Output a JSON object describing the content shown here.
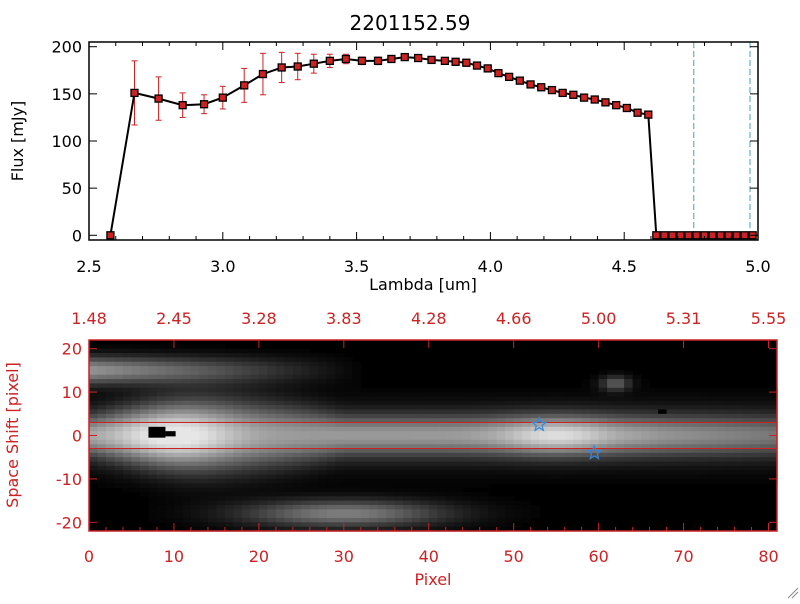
{
  "title": "2201152.59",
  "spectrum": {
    "xlabel": "Lambda [um]",
    "ylabel": "Flux [mJy]",
    "x_ticks": [
      "2.5",
      "3.0",
      "3.5",
      "4.0",
      "4.5",
      "5.0"
    ],
    "y_ticks": [
      "0",
      "50",
      "100",
      "150",
      "200"
    ],
    "reference_lines_x": [
      4.76,
      4.97
    ],
    "colors": {
      "line": "#000000",
      "marker": "#cc2222",
      "errorbar": "#cc2222",
      "reference": "#3ba6c6"
    }
  },
  "image_panel": {
    "xlabel": "Pixel",
    "ylabel": "Space Shift [pixel]",
    "bottom_ticks": [
      "0",
      "10",
      "20",
      "30",
      "40",
      "50",
      "60",
      "70",
      "80"
    ],
    "top_ticks": [
      "1.48",
      "2.45",
      "3.28",
      "3.83",
      "4.28",
      "4.66",
      "5.00",
      "5.31",
      "5.55"
    ],
    "y_ticks": [
      "-20",
      "-10",
      "0",
      "10",
      "20"
    ],
    "aperture_y": [
      3,
      -3
    ],
    "stars": [
      {
        "x": 53,
        "y": 2.5
      },
      {
        "x": 59.5,
        "y": -4
      }
    ],
    "colors": {
      "axes": "#cc2222",
      "star": "#3388dd",
      "aperture": "#cc2222"
    }
  },
  "chart_data": [
    {
      "type": "line",
      "title": "2201152.59",
      "xlabel": "Lambda [um]",
      "ylabel": "Flux [mJy]",
      "xlim": [
        2.5,
        5.0
      ],
      "ylim": [
        -5,
        205
      ],
      "series": [
        {
          "x": [
            2.58,
            2.67,
            2.76,
            2.85,
            2.93,
            3.0,
            3.08,
            3.15,
            3.22,
            3.28,
            3.34,
            3.4,
            3.46,
            3.52,
            3.58,
            3.63,
            3.68,
            3.73,
            3.78,
            3.83,
            3.87,
            3.91,
            3.95,
            3.99,
            4.03,
            4.07,
            4.11,
            4.15,
            4.19,
            4.23,
            4.27,
            4.31,
            4.35,
            4.39,
            4.43,
            4.47,
            4.51,
            4.55,
            4.59,
            4.62,
            4.65,
            4.68,
            4.71,
            4.74,
            4.77,
            4.8,
            4.83,
            4.86,
            4.89,
            4.92,
            4.95,
            4.98
          ],
          "y": [
            0,
            151,
            145,
            138,
            139,
            146,
            159,
            171,
            178,
            179,
            182,
            185,
            187,
            185,
            185,
            187,
            189,
            188,
            186,
            185,
            184,
            183,
            180,
            177,
            172,
            168,
            164,
            160,
            157,
            154,
            151,
            149,
            146,
            144,
            141,
            138,
            135,
            130,
            128,
            0,
            0,
            0,
            0,
            0,
            0,
            0,
            0,
            0,
            0,
            0,
            0,
            0
          ],
          "yerr": [
            0,
            34,
            23,
            13,
            10,
            12,
            18,
            22,
            16,
            14,
            10,
            7,
            5,
            4,
            4,
            3,
            3,
            3,
            3,
            3,
            2,
            2,
            2,
            2,
            2,
            2,
            2,
            2,
            2,
            2,
            2,
            2,
            2,
            2,
            2,
            2,
            2,
            2,
            2,
            0,
            0,
            0,
            0,
            0,
            0,
            0,
            0,
            0,
            0,
            0,
            0,
            0
          ]
        }
      ]
    },
    {
      "type": "heatmap",
      "xlabel": "Pixel",
      "ylabel": "Space Shift [pixel]",
      "xlim": [
        0,
        81
      ],
      "ylim": [
        -22,
        22
      ],
      "top_axis_labels": [
        "1.48",
        "2.45",
        "3.28",
        "3.83",
        "4.28",
        "4.66",
        "5.00",
        "5.31",
        "5.55"
      ],
      "trace_rows": [
        {
          "y_center": 0,
          "profile": [
            0.35,
            0.45,
            0.55,
            0.65,
            0.78,
            0.88,
            0.95,
            0.97,
            0.95,
            0.92,
            0.88,
            0.85,
            0.83,
            0.82,
            0.82,
            0.82,
            0.82,
            0.82,
            0.83,
            0.83,
            0.83,
            0.83,
            0.83,
            0.82,
            0.8,
            0.78,
            0.75,
            0.72,
            0.68,
            0.64,
            0.6,
            0.55
          ]
        },
        {
          "y_center": 16,
          "profile": [
            0.6,
            0.65,
            0.6,
            0.55,
            0.5,
            0.45,
            0.4,
            0.35,
            0.3,
            0.25,
            0.2,
            0.15,
            0.1,
            0.08,
            0.05,
            0.04
          ]
        },
        {
          "y_center": -18,
          "profile": [
            0.05,
            0.1,
            0.2,
            0.35,
            0.5,
            0.55,
            0.6,
            0.55,
            0.5,
            0.45,
            0.35,
            0.25,
            0.2,
            0.1
          ]
        }
      ]
    }
  ]
}
